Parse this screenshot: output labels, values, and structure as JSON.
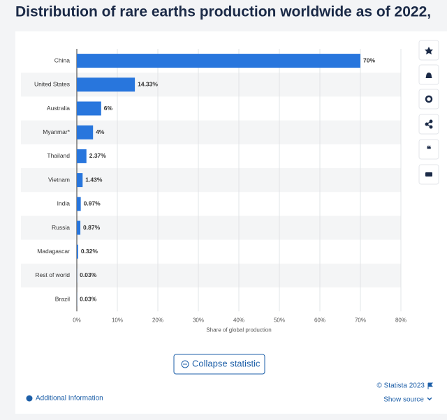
{
  "chart_data": {
    "type": "hbar",
    "title": "Distribution of rare earths production worldwide as of 2022,",
    "categories": [
      "China",
      "United States",
      "Australia",
      "Myanmar*",
      "Thailand",
      "Vietnam",
      "India",
      "Russia",
      "Madagascar",
      "Rest of world",
      "Brazil"
    ],
    "values": [
      70,
      14.33,
      6,
      4,
      2.37,
      1.43,
      0.97,
      0.87,
      0.32,
      0.03,
      0.03
    ],
    "value_labels": [
      "70%",
      "14.33%",
      "6%",
      "4%",
      "2.37%",
      "1.43%",
      "0.97%",
      "0.87%",
      "0.32%",
      "0.03%",
      "0.03%"
    ],
    "color": "#2876dd",
    "xlim": [
      0,
      80
    ],
    "xticks": [
      {
        "value": 0,
        "label": "0%"
      },
      {
        "value": 10,
        "label": "10%"
      },
      {
        "value": 20,
        "label": "20%"
      },
      {
        "value": 30,
        "label": "30%"
      },
      {
        "value": 40,
        "label": "40%"
      },
      {
        "value": 50,
        "label": "50%"
      },
      {
        "value": 60,
        "label": "60%"
      },
      {
        "value": 70,
        "label": "70%"
      },
      {
        "value": 80,
        "label": "80%"
      }
    ],
    "x_label": "Share of global production",
    "grid": true
  },
  "ui": {
    "collapse": "Collapse statistic",
    "copyright": "© Statista 2023",
    "additional_info": "Additional Information",
    "show_source": "Show source"
  }
}
